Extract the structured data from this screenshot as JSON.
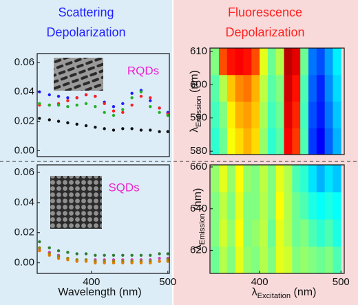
{
  "chart_data": [
    {
      "type": "scatter",
      "title": [
        "Scattering",
        "Depolarization"
      ],
      "annotation": "RQDs",
      "x": [
        332,
        345,
        357,
        369,
        381,
        393,
        405,
        417,
        429,
        441,
        453,
        465,
        477,
        489,
        500
      ],
      "xlim": [
        329,
        502
      ],
      "ylim": [
        -0.004,
        0.066
      ],
      "yticks": [
        {
          "value": 0,
          "label": "0.00"
        },
        {
          "value": 0.02,
          "label": "0.02"
        },
        {
          "value": 0.04,
          "label": "0.04"
        },
        {
          "value": 0.06,
          "label": "0.06"
        }
      ],
      "series": [
        {
          "color": "#1f1fff",
          "values": [
            0.04,
            0.038,
            0.037,
            0.036,
            0.036,
            0.038,
            0.037,
            0.033,
            0.03,
            0.032,
            0.039,
            0.041,
            0.034,
            0.029,
            0.026
          ]
        },
        {
          "color": "#ff1f1f",
          "values": [
            0.031,
            0.031,
            0.032,
            0.034,
            0.036,
            0.038,
            0.037,
            0.032,
            0.027,
            0.026,
            0.031,
            0.037,
            0.036,
            0.029,
            0.025
          ]
        },
        {
          "color": "#22b022",
          "values": [
            0.032,
            0.031,
            0.031,
            0.03,
            0.031,
            0.032,
            0.03,
            0.026,
            0.024,
            0.028,
            0.036,
            0.04,
            0.03,
            0.026,
            0.024
          ]
        },
        {
          "color": "#111111",
          "values": [
            0.022,
            0.021,
            0.02,
            0.019,
            0.018,
            0.017,
            0.016,
            0.015,
            0.014,
            0.015,
            0.015,
            0.014,
            0.014,
            0.013,
            0.013
          ]
        }
      ]
    },
    {
      "type": "scatter",
      "annotation": "SQDs",
      "x_label": "Wavelength (nm)",
      "x": [
        332,
        345,
        357,
        369,
        381,
        393,
        405,
        417,
        429,
        441,
        453,
        465,
        477,
        489,
        500
      ],
      "xlim": [
        329,
        502
      ],
      "xticks": [
        400,
        500
      ],
      "ylim": [
        -0.007,
        0.065
      ],
      "yticks": [
        {
          "value": 0,
          "label": "0.00"
        },
        {
          "value": 0.02,
          "label": "0.02"
        },
        {
          "value": 0.04,
          "label": "0.04"
        },
        {
          "value": 0.06,
          "label": "0.06"
        }
      ],
      "series": [
        {
          "color": "#2e7d32",
          "values": [
            0.014,
            0.01,
            0.008,
            0.007,
            0.006,
            0.006,
            0.005,
            0.005,
            0.005,
            0.005,
            0.005,
            0.005,
            0.005,
            0.006,
            0.006
          ]
        },
        {
          "color": "#cc44aa",
          "values": [
            0.009,
            0.007,
            0.005,
            0.003,
            0.002,
            0.002,
            0.002,
            0.002,
            0.002,
            0.002,
            0.002,
            0.002,
            0.002,
            0.003,
            0.003
          ]
        },
        {
          "color": "#8a8a00",
          "values": [
            0.01,
            0.006,
            0.004,
            0.003,
            0.002,
            0.002,
            0.001,
            0.001,
            0.001,
            0.001,
            0.001,
            0.001,
            0.001,
            0.001,
            0.002
          ]
        },
        {
          "color": "#e07b00",
          "values": [
            0.008,
            0.005,
            0.003,
            0.002,
            0.001,
            0.001,
            0,
            0,
            0,
            0,
            0,
            0,
            0,
            0.001,
            0.001
          ]
        }
      ]
    },
    {
      "type": "heatmap",
      "title": [
        "Fluorescence",
        "Depolarization"
      ],
      "y_label": {
        "symbol": "λ",
        "subscript": "Emission",
        "unit": " (nm)"
      },
      "xlim": [
        339,
        504
      ],
      "ylim": [
        579,
        611
      ],
      "yticks": [
        580,
        590,
        600,
        610
      ],
      "zlim": [
        0,
        1
      ],
      "xbins": [
        340,
        350,
        360,
        370,
        380,
        390,
        400,
        410,
        420,
        430,
        440,
        450,
        460,
        470,
        480,
        490,
        500
      ],
      "ybins": [
        579,
        587,
        595,
        603,
        611
      ],
      "values": [
        [
          0.42,
          0.48,
          0.62,
          0.66,
          0.7,
          0.66,
          0.52,
          0.42,
          0.46,
          0.88,
          0.82,
          0.45,
          0.18,
          0.12,
          0.22,
          0.3
        ],
        [
          0.44,
          0.5,
          0.64,
          0.7,
          0.72,
          0.68,
          0.54,
          0.44,
          0.48,
          0.9,
          0.84,
          0.44,
          0.2,
          0.15,
          0.24,
          0.32
        ],
        [
          0.46,
          0.55,
          0.68,
          0.74,
          0.76,
          0.7,
          0.56,
          0.46,
          0.5,
          0.92,
          0.86,
          0.45,
          0.22,
          0.16,
          0.26,
          0.34
        ],
        [
          0.5,
          0.8,
          0.86,
          0.88,
          0.86,
          0.8,
          0.6,
          0.48,
          0.55,
          0.94,
          0.9,
          0.48,
          0.24,
          0.2,
          0.28,
          0.36
        ]
      ]
    },
    {
      "type": "heatmap",
      "y_label": {
        "symbol": "λ",
        "subscript": "Emission",
        "unit": " (nm)"
      },
      "x_label": {
        "symbol": "λ",
        "subscript": "Excitation",
        "unit": " (nm)"
      },
      "xlim": [
        339,
        504
      ],
      "xticks": [
        400,
        500
      ],
      "ylim": [
        609,
        661
      ],
      "yticks": [
        620,
        640,
        660
      ],
      "zlim": [
        0,
        1
      ],
      "xbins": [
        340,
        350,
        360,
        370,
        380,
        390,
        400,
        410,
        420,
        430,
        440,
        450,
        460,
        470,
        480,
        490,
        500
      ],
      "ybins": [
        609,
        622,
        635,
        648,
        661
      ],
      "values": [
        [
          0.48,
          0.55,
          0.5,
          0.6,
          0.52,
          0.5,
          0.55,
          0.5,
          0.6,
          0.58,
          0.5,
          0.52,
          0.5,
          0.48,
          0.5,
          0.45
        ],
        [
          0.5,
          0.58,
          0.52,
          0.62,
          0.5,
          0.52,
          0.56,
          0.48,
          0.6,
          0.55,
          0.48,
          0.5,
          0.45,
          0.42,
          0.45,
          0.4
        ],
        [
          0.5,
          0.56,
          0.5,
          0.6,
          0.5,
          0.5,
          0.55,
          0.5,
          0.62,
          0.55,
          0.48,
          0.45,
          0.4,
          0.38,
          0.4,
          0.38
        ],
        [
          0.52,
          0.6,
          0.52,
          0.62,
          0.52,
          0.5,
          0.56,
          0.5,
          0.6,
          0.55,
          0.45,
          0.42,
          0.35,
          0.3,
          0.35,
          0.32
        ]
      ]
    }
  ]
}
